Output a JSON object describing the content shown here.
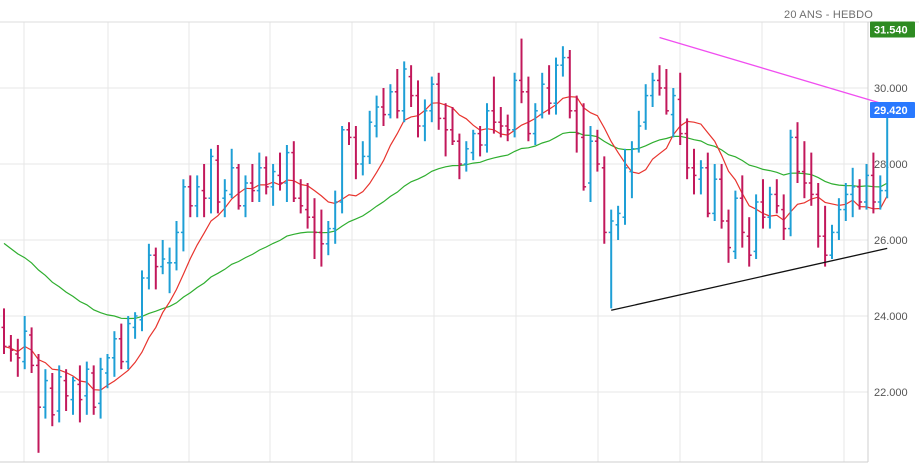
{
  "chart_data": {
    "type": "ohlc",
    "title": "20 ANS - HEBDO",
    "xlabel": "",
    "ylabel": "",
    "ylim": [
      20.3,
      32.0
    ],
    "grid": true,
    "y_ticks": [
      "22.000",
      "24.000",
      "26.000",
      "28.000",
      "30.000"
    ],
    "y_tick_values": [
      22,
      24,
      26,
      28,
      30
    ],
    "price_badges": [
      {
        "value": 31.54,
        "label": "31.540",
        "color": "#2e8b22"
      },
      {
        "value": 29.42,
        "label": "29.420",
        "color": "#2979ff"
      }
    ],
    "colors": {
      "up": "#1e9fd6",
      "down": "#c2185b",
      "ma_fast": "#e8342e",
      "ma_slow": "#2fae2f",
      "resistance": "#f04ef0",
      "support": "#111111"
    },
    "series": [
      {
        "values": [
          [
            23.7,
            24.2,
            23.0,
            23.2
          ],
          [
            23.2,
            23.5,
            22.8,
            23.1
          ],
          [
            23.0,
            23.4,
            22.4,
            22.9
          ],
          [
            22.8,
            24.0,
            22.6,
            23.6
          ],
          [
            23.5,
            23.7,
            22.5,
            22.7
          ],
          [
            22.7,
            23.0,
            20.4,
            21.6
          ],
          [
            21.6,
            22.6,
            21.3,
            22.3
          ],
          [
            22.1,
            22.5,
            21.1,
            21.4
          ],
          [
            21.5,
            22.7,
            21.2,
            22.4
          ],
          [
            22.3,
            22.6,
            21.5,
            21.9
          ],
          [
            21.8,
            22.4,
            21.4,
            22.3
          ],
          [
            22.2,
            22.7,
            21.2,
            21.8
          ],
          [
            21.9,
            22.8,
            21.4,
            22.6
          ],
          [
            22.5,
            22.7,
            21.4,
            21.6
          ],
          [
            21.7,
            22.9,
            21.3,
            22.6
          ],
          [
            22.5,
            23.0,
            22.1,
            22.9
          ],
          [
            22.9,
            23.6,
            22.4,
            23.4
          ],
          [
            23.4,
            23.8,
            22.6,
            22.8
          ],
          [
            22.8,
            24.0,
            22.6,
            23.8
          ],
          [
            23.7,
            24.1,
            23.4,
            24.0
          ],
          [
            23.9,
            25.2,
            23.6,
            25.0
          ],
          [
            25.0,
            25.9,
            24.7,
            25.6
          ],
          [
            25.6,
            25.8,
            24.7,
            25.3
          ],
          [
            25.3,
            26.0,
            25.1,
            25.5
          ],
          [
            25.4,
            25.8,
            24.6,
            25.4
          ],
          [
            25.4,
            26.5,
            25.2,
            26.2
          ],
          [
            26.2,
            27.6,
            25.7,
            27.4
          ],
          [
            27.4,
            27.7,
            26.6,
            26.9
          ],
          [
            26.9,
            27.7,
            26.6,
            27.4
          ],
          [
            27.3,
            28.0,
            26.6,
            27.1
          ],
          [
            27.1,
            28.4,
            26.7,
            28.2
          ],
          [
            28.1,
            28.5,
            26.7,
            27.0
          ],
          [
            27.1,
            27.6,
            26.6,
            27.3
          ],
          [
            27.2,
            28.4,
            27.1,
            27.9
          ],
          [
            27.9,
            28.0,
            26.8,
            26.9
          ],
          [
            26.9,
            27.7,
            26.6,
            27.5
          ],
          [
            27.5,
            28.0,
            27.0,
            27.3
          ],
          [
            27.3,
            28.3,
            27.0,
            27.9
          ],
          [
            27.9,
            28.2,
            27.2,
            27.4
          ],
          [
            27.4,
            28.0,
            26.9,
            27.8
          ],
          [
            27.7,
            28.3,
            27.3,
            27.5
          ],
          [
            27.5,
            28.5,
            27.0,
            28.3
          ],
          [
            28.3,
            28.6,
            27.0,
            27.1
          ],
          [
            27.1,
            27.6,
            26.7,
            26.9
          ],
          [
            26.8,
            27.5,
            26.3,
            26.6
          ],
          [
            26.6,
            27.1,
            25.5,
            26.2
          ],
          [
            26.2,
            26.8,
            25.3,
            25.9
          ],
          [
            25.9,
            26.5,
            25.6,
            26.3
          ],
          [
            26.3,
            27.3,
            25.9,
            27.0
          ],
          [
            27.0,
            29.0,
            26.7,
            28.9
          ],
          [
            28.9,
            29.1,
            28.5,
            28.7
          ],
          [
            28.7,
            29.0,
            27.6,
            28.0
          ],
          [
            28.0,
            28.6,
            27.7,
            28.2
          ],
          [
            28.2,
            29.4,
            28.0,
            29.1
          ],
          [
            29.0,
            29.8,
            28.7,
            29.5
          ],
          [
            29.5,
            30.0,
            29.0,
            29.3
          ],
          [
            29.3,
            30.1,
            29.2,
            29.9
          ],
          [
            29.9,
            30.5,
            29.2,
            29.4
          ],
          [
            29.4,
            30.7,
            29.1,
            30.5
          ],
          [
            30.3,
            30.6,
            29.5,
            29.8
          ],
          [
            29.8,
            30.2,
            28.7,
            29.0
          ],
          [
            29.0,
            29.7,
            28.6,
            29.4
          ],
          [
            29.4,
            30.3,
            29.1,
            30.1
          ],
          [
            30.1,
            30.4,
            28.9,
            29.2
          ],
          [
            29.2,
            29.6,
            28.2,
            28.9
          ],
          [
            28.9,
            29.5,
            28.5,
            28.6
          ],
          [
            28.6,
            28.8,
            27.6,
            28.0
          ],
          [
            28.0,
            28.6,
            27.8,
            28.4
          ],
          [
            28.3,
            28.9,
            28.1,
            28.8
          ],
          [
            28.8,
            29.0,
            28.2,
            28.5
          ],
          [
            28.5,
            29.6,
            28.3,
            29.4
          ],
          [
            29.4,
            30.3,
            28.8,
            29.1
          ],
          [
            29.1,
            29.5,
            28.7,
            29.0
          ],
          [
            29.0,
            29.3,
            28.6,
            28.9
          ],
          [
            28.9,
            30.4,
            28.7,
            30.2
          ],
          [
            30.2,
            31.3,
            29.6,
            29.9
          ],
          [
            29.9,
            30.3,
            28.6,
            28.8
          ],
          [
            28.8,
            29.6,
            28.5,
            29.4
          ],
          [
            29.3,
            30.4,
            29.2,
            30.1
          ],
          [
            30.0,
            30.6,
            29.3,
            29.6
          ],
          [
            29.6,
            30.8,
            29.3,
            30.6
          ],
          [
            30.6,
            31.1,
            30.3,
            30.8
          ],
          [
            30.8,
            31.0,
            29.2,
            29.4
          ],
          [
            29.4,
            29.8,
            28.3,
            28.8
          ],
          [
            28.7,
            29.6,
            27.3,
            27.4
          ],
          [
            27.5,
            29.0,
            27.0,
            28.6
          ],
          [
            28.6,
            28.9,
            27.8,
            28.0
          ],
          [
            27.9,
            28.2,
            25.9,
            26.2
          ],
          [
            26.2,
            26.8,
            24.2,
            26.5
          ],
          [
            26.4,
            26.9,
            26.0,
            26.7
          ],
          [
            26.6,
            28.4,
            26.4,
            27.9
          ],
          [
            27.8,
            28.6,
            27.1,
            28.4
          ],
          [
            28.4,
            29.4,
            28.3,
            29.0
          ],
          [
            29.1,
            30.1,
            28.9,
            29.8
          ],
          [
            29.8,
            30.4,
            29.5,
            30.2
          ],
          [
            30.2,
            30.6,
            29.8,
            30.0
          ],
          [
            30.0,
            30.5,
            29.3,
            29.4
          ],
          [
            29.3,
            30.0,
            28.7,
            29.8
          ],
          [
            29.7,
            30.4,
            28.5,
            28.8
          ],
          [
            28.8,
            29.2,
            27.6,
            27.9
          ],
          [
            27.9,
            28.4,
            27.2,
            27.7
          ],
          [
            27.6,
            28.1,
            27.2,
            27.9
          ],
          [
            27.9,
            28.3,
            26.6,
            26.7
          ],
          [
            26.7,
            28.0,
            26.5,
            27.6
          ],
          [
            27.6,
            28.0,
            26.3,
            26.5
          ],
          [
            26.5,
            26.8,
            25.4,
            25.8
          ],
          [
            25.7,
            27.3,
            25.5,
            27.1
          ],
          [
            27.1,
            27.7,
            25.8,
            26.2
          ],
          [
            26.1,
            26.6,
            25.3,
            25.6
          ],
          [
            25.7,
            27.2,
            25.5,
            27.0
          ],
          [
            27.0,
            27.6,
            26.3,
            26.6
          ],
          [
            26.6,
            27.4,
            26.3,
            27.2
          ],
          [
            27.2,
            27.6,
            26.7,
            26.9
          ],
          [
            26.8,
            27.2,
            26.0,
            26.3
          ],
          [
            26.3,
            28.9,
            26.1,
            28.7
          ],
          [
            28.7,
            29.1,
            27.5,
            27.8
          ],
          [
            27.8,
            28.6,
            27.1,
            27.5
          ],
          [
            27.5,
            28.3,
            26.9,
            27.2
          ],
          [
            27.2,
            27.5,
            25.8,
            26.1
          ],
          [
            26.1,
            26.9,
            25.3,
            25.6
          ],
          [
            25.6,
            26.4,
            25.5,
            26.2
          ],
          [
            26.2,
            27.1,
            26.0,
            26.8
          ],
          [
            26.8,
            27.5,
            26.5,
            27.2
          ],
          [
            27.2,
            27.9,
            26.6,
            27.4
          ],
          [
            27.4,
            27.6,
            26.8,
            27.0
          ],
          [
            27.0,
            28.0,
            26.8,
            27.7
          ],
          [
            27.7,
            28.3,
            26.7,
            27.0
          ],
          [
            27.0,
            27.7,
            26.8,
            27.3
          ],
          [
            27.3,
            29.6,
            27.1,
            29.42
          ]
        ]
      }
    ],
    "trendlines": [
      {
        "name": "resistance",
        "from": [
          95,
          31.33
        ],
        "to": [
          128,
          29.55
        ]
      },
      {
        "name": "support",
        "from": [
          88,
          24.15
        ],
        "to": [
          128,
          25.78
        ]
      }
    ]
  }
}
